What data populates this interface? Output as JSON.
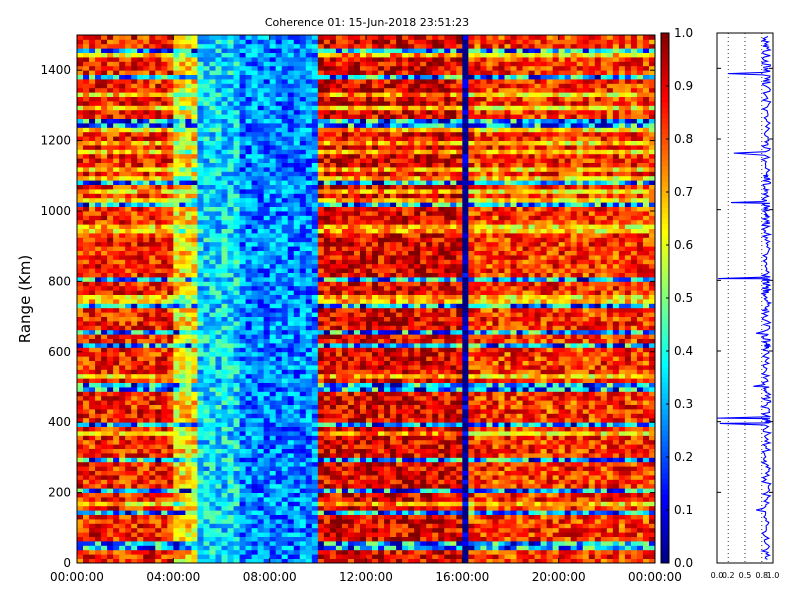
{
  "chart_data": [
    {
      "type": "heatmap",
      "title": "Coherence 01: 15-Jun-2018 23:51:23",
      "xlabel": "",
      "ylabel": "Range (Km)",
      "xlim_hours": [
        0,
        24
      ],
      "ylim": [
        0,
        1500
      ],
      "xticks": [
        "00:00:00",
        "04:00:00",
        "08:00:00",
        "12:00:00",
        "16:00:00",
        "20:00:00",
        "00:00:00"
      ],
      "yticks": [
        "0",
        "200",
        "400",
        "600",
        "800",
        "1000",
        "1200",
        "1400"
      ],
      "colormap": "jet",
      "colorbar": {
        "min": 0.0,
        "max": 1.0,
        "ticks": [
          "0.0",
          "0.1",
          "0.2",
          "0.3",
          "0.4",
          "0.5",
          "0.6",
          "0.7",
          "0.8",
          "0.9",
          "1.0"
        ]
      },
      "time_profile": [
        {
          "start_hours": 0.0,
          "end_hours": 4.0,
          "coherence": 0.85,
          "note": ""
        },
        {
          "start_hours": 4.0,
          "end_hours": 5.0,
          "coherence": 0.65,
          "note": ""
        },
        {
          "start_hours": 5.0,
          "end_hours": 6.8,
          "coherence": 0.35,
          "note": ""
        },
        {
          "start_hours": 6.8,
          "end_hours": 9.9,
          "coherence": 0.25,
          "note": ""
        },
        {
          "start_hours": 9.9,
          "end_hours": 16.0,
          "coherence": 0.9,
          "note": ""
        },
        {
          "start_hours": 16.0,
          "end_hours": 16.2,
          "coherence": 0.02,
          "note": ""
        },
        {
          "start_hours": 16.2,
          "end_hours": 24.0,
          "coherence": 0.83,
          "note": ""
        }
      ],
      "low_coherence_ranges_km": [
        50,
        145,
        210,
        295,
        395,
        500,
        620,
        655,
        730,
        810,
        1020,
        1080,
        1250,
        1385,
        1455
      ],
      "grid": false
    },
    {
      "type": "line",
      "title": "",
      "xlabel": "",
      "ylabel": "",
      "xlim": [
        0.0,
        1.0
      ],
      "ylim": [
        0,
        1500
      ],
      "xticks": [
        "0.0",
        "0.2",
        "0.5",
        "0.8",
        "1.0"
      ],
      "yticks": [
        "0",
        "200",
        "400",
        "600",
        "800",
        "1000",
        "1200",
        "1400"
      ],
      "series": [
        {
          "color": "#0000ff",
          "x": [
            0.9,
            0.92,
            0.88,
            0.7,
            0.9,
            0.93,
            0.87,
            0.91,
            0.05,
            0.0,
            0.9,
            0.92,
            0.65,
            0.89,
            0.91,
            0.88,
            0.7,
            0.9,
            0.93,
            0.86,
            0.92,
            0.9,
            0.02,
            0.88,
            0.91,
            0.89,
            0.93,
            0.87,
            0.25,
            0.9,
            0.92,
            0.88,
            0.3,
            0.91,
            0.89,
            0.93,
            0.87,
            0.2,
            0.9,
            0.92,
            0.91
          ],
          "y": [
            10,
            50,
            100,
            150,
            200,
            260,
            300,
            350,
            395,
            410,
            450,
            480,
            500,
            550,
            600,
            620,
            650,
            700,
            730,
            760,
            780,
            800,
            805,
            850,
            900,
            950,
            980,
            1000,
            1020,
            1050,
            1080,
            1100,
            1160,
            1200,
            1250,
            1300,
            1350,
            1385,
            1420,
            1460,
            1490
          ]
        }
      ],
      "grid_x": true
    }
  ]
}
